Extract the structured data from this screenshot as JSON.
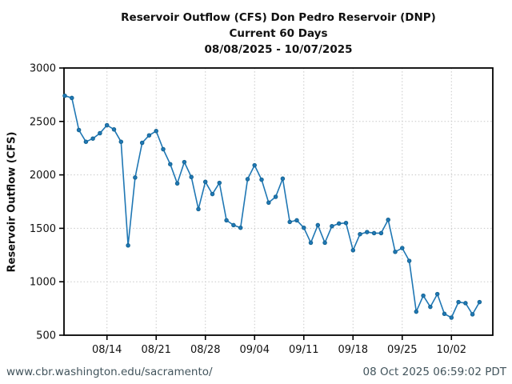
{
  "header": {
    "title_line1": "Reservoir Outflow (CFS) Don Pedro Reservoir (DNP)",
    "title_line2": "Current 60 Days",
    "title_line3": "08/08/2025 - 10/07/2025"
  },
  "footer": {
    "url": "www.cbr.washington.edu/sacramento/",
    "timestamp": "08 Oct 2025 06:59:02 PDT"
  },
  "colors": {
    "line": "#1f77b4",
    "marker_edge": "#14628f",
    "grid": "#c8c8c8",
    "axis": "#000000",
    "text": "#111111",
    "footer_text": "#42545c"
  },
  "chart_data": {
    "type": "line",
    "title": "Reservoir Outflow (CFS) Don Pedro Reservoir (DNP)",
    "subtitle": "Current 60 Days",
    "date_range": "08/08/2025 - 10/07/2025",
    "xlabel": "",
    "ylabel": "Reservoir Outflow (CFS)",
    "ylim": [
      500,
      3000
    ],
    "yticks": [
      3000,
      2500,
      2000,
      1500,
      1000,
      500
    ],
    "xtick_labels": [
      "08/14",
      "08/21",
      "08/28",
      "09/04",
      "09/11",
      "09/18",
      "09/25",
      "10/02"
    ],
    "xtick_indices": [
      6,
      13,
      20,
      27,
      34,
      41,
      48,
      55
    ],
    "grid": true,
    "legend": false,
    "marker": "circle",
    "x": [
      "08/08",
      "08/09",
      "08/10",
      "08/11",
      "08/12",
      "08/13",
      "08/14",
      "08/15",
      "08/16",
      "08/17",
      "08/18",
      "08/19",
      "08/20",
      "08/21",
      "08/22",
      "08/23",
      "08/24",
      "08/25",
      "08/26",
      "08/27",
      "08/28",
      "08/29",
      "08/30",
      "08/31",
      "09/01",
      "09/02",
      "09/03",
      "09/04",
      "09/05",
      "09/06",
      "09/07",
      "09/08",
      "09/09",
      "09/10",
      "09/11",
      "09/12",
      "09/13",
      "09/14",
      "09/15",
      "09/16",
      "09/17",
      "09/18",
      "09/19",
      "09/20",
      "09/21",
      "09/22",
      "09/23",
      "09/24",
      "09/25",
      "09/26",
      "09/27",
      "09/28",
      "09/29",
      "09/30",
      "10/01",
      "10/02",
      "10/03",
      "10/04",
      "10/05",
      "10/06"
    ],
    "values": [
      2740,
      2720,
      2420,
      2310,
      2340,
      2390,
      2465,
      2425,
      2310,
      1340,
      1975,
      2300,
      2370,
      2410,
      2240,
      2100,
      1920,
      2120,
      1980,
      1680,
      1935,
      1820,
      1925,
      1575,
      1530,
      1505,
      1960,
      2090,
      1955,
      1740,
      1795,
      1965,
      1560,
      1575,
      1505,
      1365,
      1530,
      1365,
      1520,
      1545,
      1550,
      1295,
      1445,
      1465,
      1455,
      1455,
      1580,
      1280,
      1315,
      1195,
      720,
      870,
      765,
      885,
      700,
      665,
      810,
      800,
      695,
      810
    ]
  }
}
